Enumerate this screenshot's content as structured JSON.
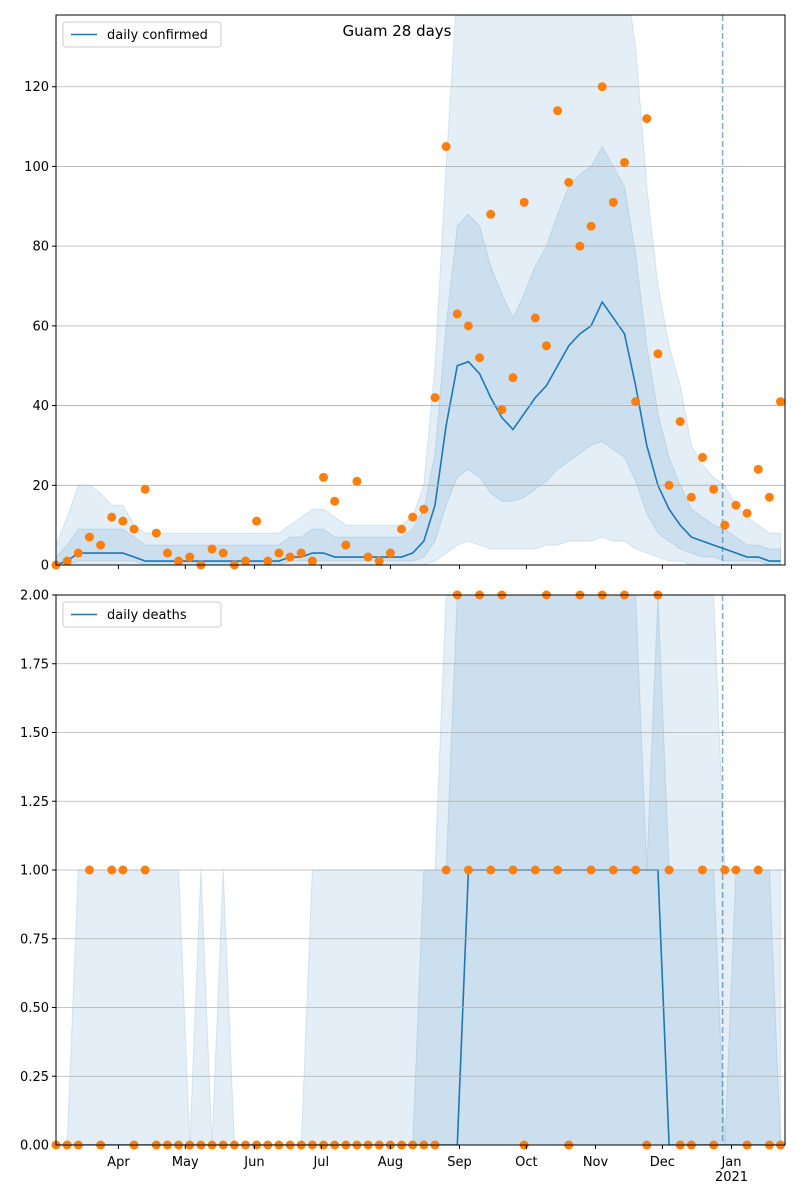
{
  "chart_data": [
    {
      "type": "line",
      "title": "Guam 28 days",
      "legend": "upper left",
      "grid": true,
      "x": [
        "2020-03-04",
        "2020-03-09",
        "2020-03-14",
        "2020-03-19",
        "2020-03-24",
        "2020-03-29",
        "2020-04-03",
        "2020-04-08",
        "2020-04-13",
        "2020-04-18",
        "2020-04-23",
        "2020-04-28",
        "2020-05-03",
        "2020-05-08",
        "2020-05-13",
        "2020-05-18",
        "2020-05-23",
        "2020-05-28",
        "2020-06-02",
        "2020-06-07",
        "2020-06-12",
        "2020-06-17",
        "2020-06-22",
        "2020-06-27",
        "2020-07-02",
        "2020-07-07",
        "2020-07-12",
        "2020-07-17",
        "2020-07-22",
        "2020-07-27",
        "2020-08-01",
        "2020-08-06",
        "2020-08-11",
        "2020-08-16",
        "2020-08-21",
        "2020-08-26",
        "2020-08-31",
        "2020-09-05",
        "2020-09-10",
        "2020-09-15",
        "2020-09-20",
        "2020-09-25",
        "2020-09-30",
        "2020-10-05",
        "2020-10-10",
        "2020-10-15",
        "2020-10-20",
        "2020-10-25",
        "2020-10-30",
        "2020-11-04",
        "2020-11-09",
        "2020-11-14",
        "2020-11-19",
        "2020-11-24",
        "2020-11-29",
        "2020-12-04",
        "2020-12-09",
        "2020-12-14",
        "2020-12-19",
        "2020-12-24",
        "2020-12-29",
        "2021-01-03",
        "2021-01-08",
        "2021-01-13",
        "2021-01-18",
        "2021-01-23"
      ],
      "xlim": [
        "2020-03-04",
        "2021-01-25"
      ],
      "xticks": [
        {
          "value": "2020-04-01",
          "label": "Apr"
        },
        {
          "value": "2020-05-01",
          "label": "May"
        },
        {
          "value": "2020-06-01",
          "label": "Jun"
        },
        {
          "value": "2020-07-01",
          "label": "Jul"
        },
        {
          "value": "2020-08-01",
          "label": "Aug"
        },
        {
          "value": "2020-09-01",
          "label": "Sep"
        },
        {
          "value": "2020-10-01",
          "label": "Oct"
        },
        {
          "value": "2020-11-01",
          "label": "Nov"
        },
        {
          "value": "2020-12-01",
          "label": "Dec"
        },
        {
          "value": "2021-01-01",
          "label": "Jan\n2021"
        }
      ],
      "vline": "2020-12-28",
      "ylim": [
        0,
        138
      ],
      "yticks": [
        0,
        20,
        40,
        60,
        80,
        100,
        120
      ],
      "series": [
        {
          "name": "daily confirmed",
          "color": "#1f77b4",
          "values": [
            0,
            1,
            3,
            3,
            3,
            3,
            3,
            2,
            1,
            1,
            1,
            1,
            1,
            1,
            1,
            1,
            1,
            1,
            1,
            1,
            1,
            2,
            2,
            3,
            3,
            2,
            2,
            2,
            2,
            2,
            2,
            2,
            3,
            6,
            15,
            35,
            50,
            51,
            48,
            42,
            37,
            34,
            38,
            42,
            45,
            50,
            55,
            58,
            60,
            66,
            62,
            58,
            45,
            30,
            20,
            14,
            10,
            7,
            6,
            5,
            4,
            3,
            2,
            2,
            1,
            1
          ]
        }
      ],
      "bands": [
        {
          "color": "#1f77b4",
          "upper": [
            5,
            12,
            20,
            20,
            18,
            15,
            15,
            10,
            8,
            8,
            8,
            8,
            8,
            8,
            8,
            8,
            8,
            8,
            8,
            8,
            8,
            10,
            12,
            14,
            14,
            12,
            10,
            10,
            10,
            10,
            10,
            10,
            12,
            20,
            50,
            100,
            145,
            150,
            150,
            150,
            150,
            140,
            150,
            150,
            150,
            150,
            150,
            150,
            150,
            150,
            150,
            150,
            130,
            95,
            70,
            55,
            45,
            30,
            25,
            22,
            20,
            15,
            12,
            10,
            8,
            8
          ],
          "lower": [
            0,
            0,
            0,
            0,
            0,
            0,
            0,
            0,
            0,
            0,
            0,
            0,
            0,
            0,
            0,
            0,
            0,
            0,
            0,
            0,
            0,
            0,
            0,
            0,
            0,
            0,
            0,
            0,
            0,
            0,
            0,
            0,
            0,
            0,
            1,
            3,
            5,
            6,
            5,
            4,
            4,
            4,
            4,
            4,
            5,
            5,
            6,
            6,
            6,
            7,
            6,
            6,
            4,
            3,
            2,
            1,
            1,
            0,
            0,
            0,
            0,
            0,
            0,
            0,
            0,
            0
          ]
        },
        {
          "color": "#1f77b4",
          "upper": [
            2,
            5,
            9,
            9,
            9,
            9,
            9,
            7,
            5,
            5,
            5,
            5,
            5,
            5,
            5,
            5,
            5,
            5,
            5,
            5,
            5,
            7,
            7,
            9,
            9,
            7,
            7,
            7,
            7,
            7,
            7,
            7,
            9,
            14,
            28,
            60,
            85,
            88,
            85,
            75,
            68,
            62,
            68,
            75,
            80,
            88,
            95,
            98,
            100,
            105,
            100,
            95,
            78,
            55,
            38,
            27,
            20,
            14,
            12,
            10,
            9,
            7,
            5,
            5,
            4,
            4
          ],
          "lower": [
            0,
            0,
            1,
            1,
            1,
            1,
            1,
            1,
            0,
            0,
            0,
            0,
            0,
            0,
            0,
            0,
            0,
            0,
            0,
            0,
            0,
            1,
            1,
            1,
            1,
            1,
            1,
            1,
            1,
            1,
            1,
            1,
            1,
            2,
            6,
            15,
            22,
            24,
            22,
            18,
            16,
            16,
            17,
            19,
            21,
            24,
            26,
            28,
            30,
            31,
            29,
            27,
            21,
            13,
            8,
            6,
            4,
            3,
            2,
            2,
            1,
            1,
            1,
            1,
            0,
            0
          ]
        }
      ],
      "points": {
        "color": "#ff7f0e",
        "values": [
          0,
          1,
          3,
          7,
          5,
          12,
          11,
          9,
          19,
          8,
          3,
          1,
          2,
          0,
          4,
          3,
          0,
          1,
          11,
          1,
          3,
          2,
          3,
          1,
          22,
          16,
          5,
          21,
          2,
          1,
          3,
          9,
          12,
          14,
          42,
          105,
          63,
          60,
          52,
          88,
          39,
          47,
          91,
          62,
          55,
          114,
          96,
          80,
          85,
          120,
          91,
          101,
          41,
          112,
          53,
          20,
          36,
          17,
          27,
          19,
          10,
          15,
          13,
          24,
          17,
          41
        ]
      }
    },
    {
      "type": "line",
      "legend": "upper left",
      "grid": true,
      "ylim": [
        0,
        2
      ],
      "yticks": [
        {
          "value": 0,
          "label": "0.00"
        },
        {
          "value": 0.25,
          "label": "0.25"
        },
        {
          "value": 0.5,
          "label": "0.50"
        },
        {
          "value": 0.75,
          "label": "0.75"
        },
        {
          "value": 1,
          "label": "1.00"
        },
        {
          "value": 1.25,
          "label": "1.25"
        },
        {
          "value": 1.5,
          "label": "1.50"
        },
        {
          "value": 1.75,
          "label": "1.75"
        },
        {
          "value": 2,
          "label": "2.00"
        }
      ],
      "series": [
        {
          "name": "daily deaths",
          "color": "#1f77b4",
          "values": [
            0,
            0,
            0,
            0,
            0,
            0,
            0,
            0,
            0,
            0,
            0,
            0,
            0,
            0,
            0,
            0,
            0,
            0,
            0,
            0,
            0,
            0,
            0,
            0,
            0,
            0,
            0,
            0,
            0,
            0,
            0,
            0,
            0,
            0,
            0,
            0,
            0,
            1,
            1,
            1,
            1,
            1,
            1,
            1,
            1,
            1,
            1,
            1,
            1,
            1,
            1,
            1,
            1,
            1,
            1,
            0,
            0,
            0,
            0,
            0,
            0,
            0,
            0,
            0,
            0,
            0
          ]
        }
      ],
      "bands": [
        {
          "color": "#1f77b4",
          "upper": [
            0,
            0,
            1,
            1,
            1,
            1,
            1,
            1,
            1,
            1,
            1,
            1,
            0,
            1,
            0,
            1,
            0,
            0,
            0,
            0,
            0,
            0,
            0,
            1,
            1,
            1,
            1,
            1,
            1,
            1,
            1,
            1,
            1,
            1,
            1,
            2,
            2,
            2,
            2,
            2,
            2,
            2,
            2,
            2,
            2,
            2,
            2,
            2,
            2,
            2,
            2,
            2,
            2,
            2,
            2,
            2,
            2,
            2,
            2,
            2,
            1,
            1,
            1,
            1,
            1,
            1
          ]
        },
        {
          "color": "#1f77b4",
          "upper": [
            0,
            0,
            0,
            0,
            0,
            0,
            0,
            0,
            0,
            0,
            0,
            0,
            0,
            0,
            0,
            0,
            0,
            0,
            0,
            0,
            0,
            0,
            0,
            0,
            0,
            0,
            0,
            0,
            0,
            0,
            0,
            0,
            0,
            1,
            1,
            1,
            2,
            2,
            2,
            2,
            2,
            2,
            2,
            2,
            2,
            2,
            2,
            2,
            2,
            2,
            2,
            2,
            2,
            1,
            2,
            1,
            1,
            1,
            1,
            1,
            0,
            1,
            1,
            1,
            1,
            0
          ]
        }
      ],
      "points": {
        "color": "#ff7f0e",
        "values": [
          0,
          0,
          0,
          1,
          0,
          1,
          1,
          0,
          1,
          0,
          0,
          0,
          0,
          0,
          0,
          0,
          0,
          0,
          0,
          0,
          0,
          0,
          0,
          0,
          0,
          0,
          0,
          0,
          0,
          0,
          0,
          0,
          0,
          0,
          0,
          1,
          2,
          1,
          2,
          1,
          2,
          1,
          0,
          1,
          2,
          1,
          0,
          2,
          1,
          2,
          1,
          2,
          1,
          0,
          2,
          1,
          0,
          0,
          1,
          0,
          1,
          1,
          0,
          1,
          0,
          0
        ]
      }
    }
  ]
}
